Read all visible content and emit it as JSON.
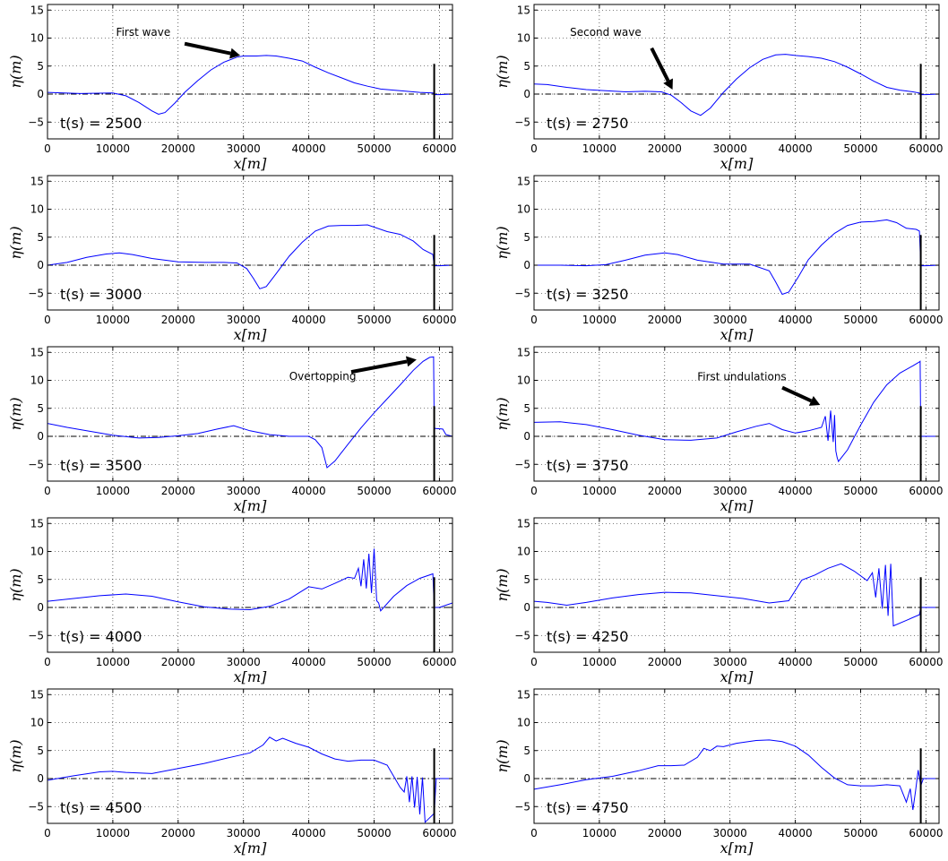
{
  "chart_data": [
    {
      "type": "line",
      "time_label": "t(s) = 2500",
      "xlabel": "x[m]",
      "ylabel": "η(m)",
      "xlim": [
        0,
        62000
      ],
      "ylim": [
        -8,
        16
      ],
      "xticks": [
        "0",
        "10000",
        "20000",
        "30000",
        "40000",
        "50000",
        "60000"
      ],
      "yticks": [
        "−5",
        "0",
        "5",
        "10",
        "15"
      ],
      "grid": true,
      "wall_x": 59200,
      "annotations": [
        {
          "text": "First wave",
          "text_x": 10500,
          "text_y": 10.4,
          "arrow_from": [
            21000,
            9
          ],
          "arrow_to": [
            29500,
            6.9
          ]
        }
      ],
      "series": [
        {
          "x": [
            0,
            5000,
            10000,
            12000,
            14000,
            16000,
            17000,
            18000,
            19500,
            21000,
            23000,
            25000,
            27000,
            29000,
            30000,
            32000,
            33500,
            35000,
            37000,
            39000,
            41000,
            43000,
            45000,
            47000,
            49000,
            51000,
            53000,
            55000,
            57000,
            59000,
            59200,
            60000,
            62000
          ],
          "y": [
            0.3,
            0.1,
            0.2,
            -0.3,
            -1.5,
            -3,
            -3.6,
            -3.3,
            -1.6,
            0.3,
            2.4,
            4.3,
            5.7,
            6.6,
            6.8,
            6.8,
            6.9,
            6.8,
            6.4,
            5.9,
            4.8,
            3.8,
            2.9,
            2.0,
            1.4,
            0.9,
            0.7,
            0.5,
            0.3,
            0.2,
            -0.1,
            -0.1,
            0
          ]
        }
      ]
    },
    {
      "type": "line",
      "time_label": "t(s) = 2750",
      "xlabel": "x[m]",
      "ylabel": "η(m)",
      "xlim": [
        0,
        62000
      ],
      "ylim": [
        -8,
        16
      ],
      "xticks": [
        "0",
        "10000",
        "20000",
        "30000",
        "40000",
        "50000",
        "60000"
      ],
      "yticks": [
        "−5",
        "0",
        "5",
        "10",
        "15"
      ],
      "grid": true,
      "wall_x": 59200,
      "annotations": [
        {
          "text": "Second wave",
          "text_x": 5500,
          "text_y": 10.4,
          "arrow_from": [
            18000,
            8.2
          ],
          "arrow_to": [
            21200,
            0.8
          ]
        }
      ],
      "series": [
        {
          "x": [
            0,
            2000,
            5000,
            8000,
            11000,
            14000,
            17000,
            19500,
            21000,
            22500,
            24000,
            25500,
            27000,
            29000,
            31000,
            33000,
            35000,
            37000,
            38500,
            40000,
            42000,
            44000,
            46000,
            48000,
            50000,
            52000,
            54000,
            56000,
            58000,
            59000,
            59200,
            60000,
            62000
          ],
          "y": [
            1.8,
            1.7,
            1.2,
            0.8,
            0.6,
            0.4,
            0.5,
            0.4,
            -0.2,
            -1.5,
            -3.0,
            -3.8,
            -2.5,
            0.3,
            2.7,
            4.7,
            6.2,
            7.0,
            7.1,
            6.9,
            6.7,
            6.4,
            5.8,
            4.8,
            3.6,
            2.3,
            1.2,
            0.7,
            0.4,
            0.2,
            -0.1,
            -0.1,
            0
          ]
        }
      ]
    },
    {
      "type": "line",
      "time_label": "t(s) = 3000",
      "xlabel": "x[m]",
      "ylabel": "η(m)",
      "xlim": [
        0,
        62000
      ],
      "ylim": [
        -8,
        16
      ],
      "xticks": [
        "0",
        "10000",
        "20000",
        "30000",
        "40000",
        "50000",
        "60000"
      ],
      "yticks": [
        "−5",
        "0",
        "5",
        "10",
        "15"
      ],
      "grid": true,
      "wall_x": 59200,
      "annotations": [],
      "series": [
        {
          "x": [
            0,
            3000,
            6000,
            9000,
            11000,
            13000,
            16000,
            20000,
            24000,
            27000,
            29000,
            30500,
            31500,
            32500,
            33500,
            35000,
            37000,
            39000,
            41000,
            43000,
            45000,
            47000,
            49000,
            50000,
            52000,
            54000,
            56000,
            57500,
            59000,
            59200,
            60000,
            62000
          ],
          "y": [
            0,
            0.5,
            1.4,
            2.0,
            2.2,
            1.9,
            1.2,
            0.6,
            0.5,
            0.5,
            0.4,
            -0.6,
            -2.3,
            -4.2,
            -3.8,
            -1.5,
            1.6,
            4.1,
            6.1,
            7.0,
            7.1,
            7.1,
            7.2,
            6.8,
            6.0,
            5.5,
            4.3,
            2.8,
            1.9,
            -0.1,
            -0.1,
            0
          ]
        }
      ]
    },
    {
      "type": "line",
      "time_label": "t(s) = 3250",
      "xlabel": "x[m]",
      "ylabel": "η(m)",
      "xlim": [
        0,
        62000
      ],
      "ylim": [
        -8,
        16
      ],
      "xticks": [
        "0",
        "10000",
        "20000",
        "30000",
        "40000",
        "50000",
        "60000"
      ],
      "yticks": [
        "−5",
        "0",
        "5",
        "10",
        "15"
      ],
      "grid": true,
      "wall_x": 59200,
      "annotations": [],
      "series": [
        {
          "x": [
            0,
            4000,
            8000,
            11000,
            14000,
            17000,
            20000,
            22000,
            25000,
            29000,
            33000,
            36000,
            37000,
            38000,
            39000,
            40500,
            42000,
            44000,
            46000,
            48000,
            50000,
            52000,
            54000,
            55500,
            57000,
            58500,
            59000,
            59200,
            60000,
            62000
          ],
          "y": [
            0,
            0,
            -0.1,
            0.1,
            0.9,
            1.8,
            2.2,
            1.9,
            0.9,
            0.2,
            0.2,
            -1.0,
            -3.0,
            -5.2,
            -4.8,
            -2.0,
            1.0,
            3.6,
            5.7,
            7.1,
            7.7,
            7.8,
            8.1,
            7.6,
            6.6,
            6.4,
            6.1,
            -0.1,
            -0.1,
            0
          ]
        }
      ]
    },
    {
      "type": "line",
      "time_label": "t(s) = 3500",
      "xlabel": "x[m]",
      "ylabel": "η(m)",
      "xlim": [
        0,
        62000
      ],
      "ylim": [
        -8,
        16
      ],
      "xticks": [
        "0",
        "10000",
        "20000",
        "30000",
        "40000",
        "50000",
        "60000"
      ],
      "yticks": [
        "−5",
        "0",
        "5",
        "10",
        "15"
      ],
      "grid": true,
      "wall_x": 59200,
      "annotations": [
        {
          "text": "Overtopping",
          "text_x": 37000,
          "text_y": 10.1,
          "arrow_from": [
            46500,
            11.5
          ],
          "arrow_to": [
            56500,
            13.7
          ]
        }
      ],
      "series": [
        {
          "x": [
            0,
            3000,
            6000,
            10000,
            14000,
            17000,
            20000,
            23000,
            26000,
            28500,
            31000,
            34000,
            37000,
            40000,
            41000,
            42000,
            42800,
            44000,
            46000,
            48000,
            50000,
            52000,
            54000,
            56000,
            57500,
            58500,
            59100,
            59200,
            59400,
            60500,
            61000,
            62000
          ],
          "y": [
            2.3,
            1.6,
            1.0,
            0.2,
            -0.3,
            -0.2,
            0.1,
            0.5,
            1.3,
            1.9,
            1.0,
            0.3,
            0.0,
            0.0,
            -0.6,
            -2.0,
            -5.6,
            -4.4,
            -1.4,
            1.5,
            4.2,
            6.7,
            9.2,
            11.8,
            13.4,
            14.1,
            14.2,
            1.5,
            1.4,
            1.3,
            0.3,
            0
          ]
        }
      ]
    },
    {
      "type": "line",
      "time_label": "t(s) = 3750",
      "xlabel": "x[m]",
      "ylabel": "η(m)",
      "xlim": [
        0,
        62000
      ],
      "ylim": [
        -8,
        16
      ],
      "xticks": [
        "0",
        "10000",
        "20000",
        "30000",
        "40000",
        "50000",
        "60000"
      ],
      "yticks": [
        "−5",
        "0",
        "5",
        "10",
        "15"
      ],
      "grid": true,
      "wall_x": 59200,
      "annotations": [
        {
          "text": "First undulations",
          "text_x": 25000,
          "text_y": 10.0,
          "arrow_from": [
            38000,
            8.7
          ],
          "arrow_to": [
            43800,
            5.6
          ]
        }
      ],
      "series": [
        {
          "x": [
            0,
            4000,
            8000,
            12000,
            16000,
            20000,
            24000,
            28000,
            31000,
            34000,
            36000,
            38000,
            40000,
            42000,
            44000,
            44600,
            45000,
            45400,
            45800,
            46000,
            46200,
            46400,
            46600,
            48000,
            50000,
            52000,
            54000,
            56000,
            58000,
            59000,
            59100,
            59200,
            62000
          ],
          "y": [
            2.5,
            2.6,
            2.1,
            1.2,
            0.2,
            -0.6,
            -0.7,
            -0.3,
            0.8,
            1.8,
            2.3,
            1.2,
            0.6,
            1.0,
            1.6,
            3.6,
            -0.8,
            4.6,
            -1.0,
            3.8,
            -2.6,
            -3.8,
            -4.5,
            -2.4,
            2.0,
            6.1,
            9.2,
            11.3,
            12.6,
            13.3,
            13.4,
            0,
            0
          ]
        }
      ]
    },
    {
      "type": "line",
      "time_label": "t(s) = 4000",
      "xlabel": "x[m]",
      "ylabel": "η(m)",
      "xlim": [
        0,
        62000
      ],
      "ylim": [
        -8,
        16
      ],
      "xticks": [
        "0",
        "10000",
        "20000",
        "30000",
        "40000",
        "50000",
        "60000"
      ],
      "yticks": [
        "−5",
        "0",
        "5",
        "10",
        "15"
      ],
      "grid": true,
      "wall_x": 59200,
      "annotations": [],
      "series": [
        {
          "x": [
            0,
            4000,
            8000,
            12000,
            16000,
            20000,
            24000,
            28000,
            31000,
            34000,
            37000,
            40000,
            42000,
            44000,
            46000,
            47000,
            47600,
            48000,
            48400,
            48800,
            49200,
            49600,
            50000,
            50400,
            50700,
            51000,
            53000,
            55000,
            57000,
            59000,
            59200,
            60000,
            62000
          ],
          "y": [
            1.1,
            1.6,
            2.1,
            2.4,
            2.0,
            1.0,
            0.1,
            -0.3,
            -0.4,
            0.2,
            1.5,
            3.7,
            3.3,
            4.3,
            5.4,
            5.2,
            7.0,
            3.8,
            8.6,
            3.4,
            9.6,
            2.6,
            10.5,
            1.2,
            0.8,
            -0.6,
            2.0,
            3.9,
            5.2,
            6.0,
            0,
            0,
            0.8
          ]
        }
      ]
    },
    {
      "type": "line",
      "time_label": "t(s) = 4250",
      "xlabel": "x[m]",
      "ylabel": "η(m)",
      "xlim": [
        0,
        62000
      ],
      "ylim": [
        -8,
        16
      ],
      "xticks": [
        "0",
        "10000",
        "20000",
        "30000",
        "40000",
        "50000",
        "60000"
      ],
      "yticks": [
        "−5",
        "0",
        "5",
        "10",
        "15"
      ],
      "grid": true,
      "wall_x": 59200,
      "annotations": [],
      "series": [
        {
          "x": [
            0,
            2000,
            5000,
            8000,
            12000,
            16000,
            20000,
            24000,
            28000,
            32000,
            36000,
            39000,
            41000,
            43000,
            45000,
            47000,
            49000,
            51000,
            51800,
            52300,
            52800,
            53300,
            53800,
            54200,
            54600,
            55000,
            57000,
            59000,
            59200,
            60000,
            62000
          ],
          "y": [
            1.1,
            0.9,
            0.4,
            0.9,
            1.7,
            2.3,
            2.7,
            2.6,
            2.1,
            1.6,
            0.8,
            1.2,
            4.9,
            5.8,
            7.0,
            7.8,
            6.5,
            4.8,
            6.2,
            1.8,
            7.0,
            -0.2,
            7.6,
            -1.5,
            7.8,
            -3.3,
            -2.3,
            -1.3,
            0,
            0,
            0
          ]
        }
      ]
    },
    {
      "type": "line",
      "time_label": "t(s) = 4500",
      "xlabel": "x[m]",
      "ylabel": "η(m)",
      "xlim": [
        0,
        62000
      ],
      "ylim": [
        -8,
        16
      ],
      "xticks": [
        "0",
        "10000",
        "20000",
        "30000",
        "40000",
        "50000",
        "60000"
      ],
      "yticks": [
        "−5",
        "0",
        "5",
        "10",
        "15"
      ],
      "grid": true,
      "wall_x": 59200,
      "annotations": [],
      "series": [
        {
          "x": [
            0,
            4000,
            8000,
            10000,
            12000,
            16000,
            20000,
            24000,
            28000,
            31000,
            33000,
            34000,
            35000,
            36000,
            38000,
            40000,
            42000,
            44000,
            46000,
            48000,
            50000,
            52000,
            53000,
            54000,
            54600,
            55000,
            55400,
            55800,
            56200,
            56600,
            57000,
            57400,
            57800,
            59200,
            59500,
            62000
          ],
          "y": [
            -0.3,
            0.5,
            1.2,
            1.3,
            1.1,
            0.9,
            1.8,
            2.7,
            3.8,
            4.6,
            6.0,
            7.4,
            6.7,
            7.2,
            6.3,
            5.6,
            4.4,
            3.5,
            3.1,
            3.3,
            3.3,
            2.4,
            0.4,
            -1.6,
            -2.4,
            0.4,
            -4.2,
            0.4,
            -5.2,
            0.3,
            -6.4,
            0.2,
            -7.8,
            -6.2,
            0,
            0
          ]
        }
      ]
    },
    {
      "type": "line",
      "time_label": "t(s) = 4750",
      "xlabel": "x[m]",
      "ylabel": "η(m)",
      "xlim": [
        0,
        62000
      ],
      "ylim": [
        -8,
        16
      ],
      "xticks": [
        "0",
        "10000",
        "20000",
        "30000",
        "40000",
        "50000",
        "60000"
      ],
      "yticks": [
        "−5",
        "0",
        "5",
        "10",
        "15"
      ],
      "grid": true,
      "wall_x": 59200,
      "annotations": [],
      "series": [
        {
          "x": [
            0,
            4000,
            8000,
            12000,
            16000,
            19000,
            21000,
            23000,
            25000,
            26000,
            27000,
            28000,
            29000,
            31000,
            34000,
            36000,
            38000,
            40000,
            42000,
            44000,
            46000,
            48000,
            50000,
            52000,
            54000,
            56000,
            57000,
            57600,
            58000,
            58400,
            58800,
            59200,
            59600,
            60000,
            62000
          ],
          "y": [
            -1.9,
            -1.1,
            -0.2,
            0.4,
            1.4,
            2.3,
            2.3,
            2.4,
            3.8,
            5.4,
            5.0,
            5.8,
            5.7,
            6.3,
            6.8,
            6.9,
            6.6,
            5.8,
            4.2,
            2.0,
            0.1,
            -1.1,
            -1.3,
            -1.3,
            -1.1,
            -1.3,
            -4.2,
            -1.8,
            -5.6,
            -2.2,
            1.5,
            -1.3,
            0,
            0,
            0
          ]
        }
      ]
    }
  ]
}
